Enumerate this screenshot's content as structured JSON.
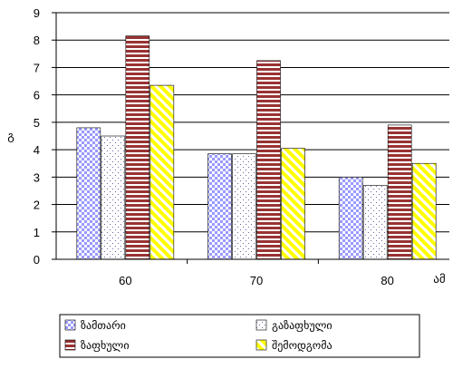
{
  "chart_data": {
    "type": "bar",
    "title": "",
    "xlabel": "",
    "ylabel": "გ",
    "x_unit_label": "ამ",
    "categories": [
      "60",
      "70",
      "80"
    ],
    "ylim": [
      0,
      9
    ],
    "yticks": [
      "0",
      "1",
      "2",
      "3",
      "4",
      "5",
      "6",
      "7",
      "8",
      "9"
    ],
    "grid": "horizontal",
    "legend_position": "bottom",
    "series": [
      {
        "name": "ზამთარი",
        "values": [
          4.8,
          3.85,
          3.0
        ],
        "color": "#9999ff",
        "pattern": "checker"
      },
      {
        "name": "გაზაფხული",
        "values": [
          4.5,
          3.85,
          2.7
        ],
        "color": "#ffffcc",
        "pattern": "dots"
      },
      {
        "name": "ზაფხული",
        "values": [
          8.15,
          7.25,
          4.9
        ],
        "color": "#993333",
        "pattern": "hstripes"
      },
      {
        "name": "შემოდგომა",
        "values": [
          6.35,
          4.05,
          3.5
        ],
        "color": "#ffff00",
        "pattern": "diag"
      }
    ]
  }
}
